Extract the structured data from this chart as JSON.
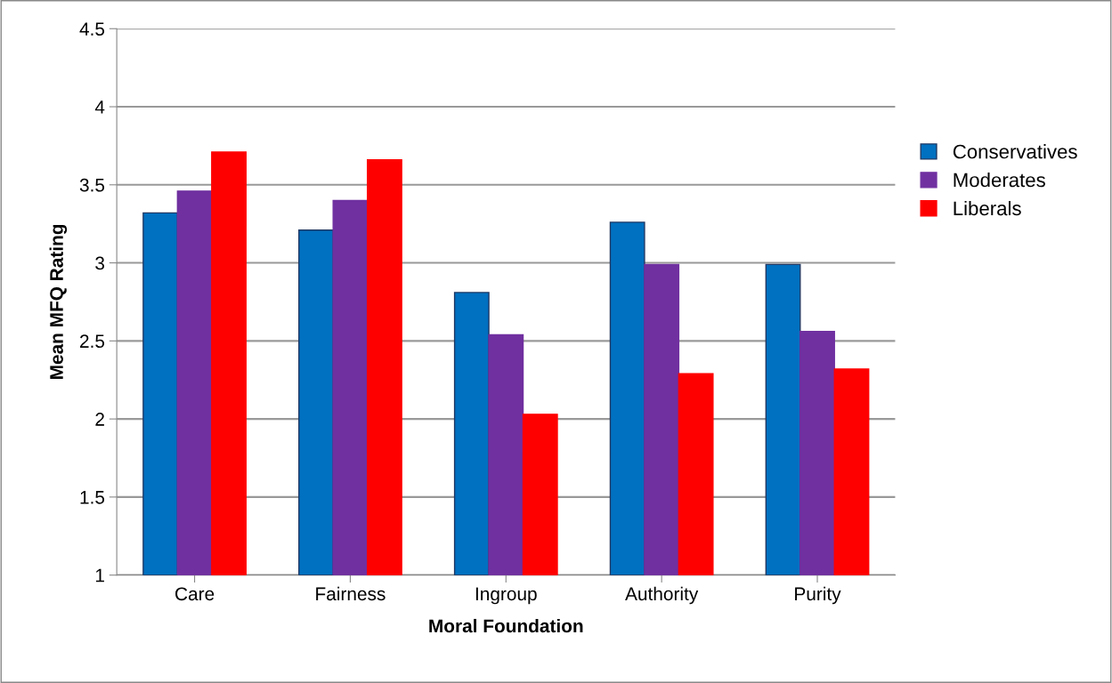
{
  "chart_data": {
    "type": "bar",
    "xlabel": "Moral Foundation",
    "ylabel": "Mean MFQ Rating",
    "categories": [
      "Care",
      "Fairness",
      "Ingroup",
      "Authority",
      "Purity"
    ],
    "series": [
      {
        "name": "Conservatives",
        "color": "#0070c0",
        "values": [
          3.32,
          3.21,
          2.81,
          3.26,
          2.99
        ]
      },
      {
        "name": "Moderates",
        "color": "#7030a0",
        "values": [
          3.46,
          3.4,
          2.54,
          2.99,
          2.56
        ]
      },
      {
        "name": "Liberals",
        "color": "#ff0000",
        "values": [
          3.71,
          3.66,
          2.03,
          2.29,
          2.32
        ]
      }
    ],
    "ylim": [
      1,
      4.5
    ],
    "yticks": [
      1,
      1.5,
      2,
      2.5,
      3,
      3.5,
      4,
      4.5
    ],
    "grid": "y",
    "legend": "right"
  }
}
